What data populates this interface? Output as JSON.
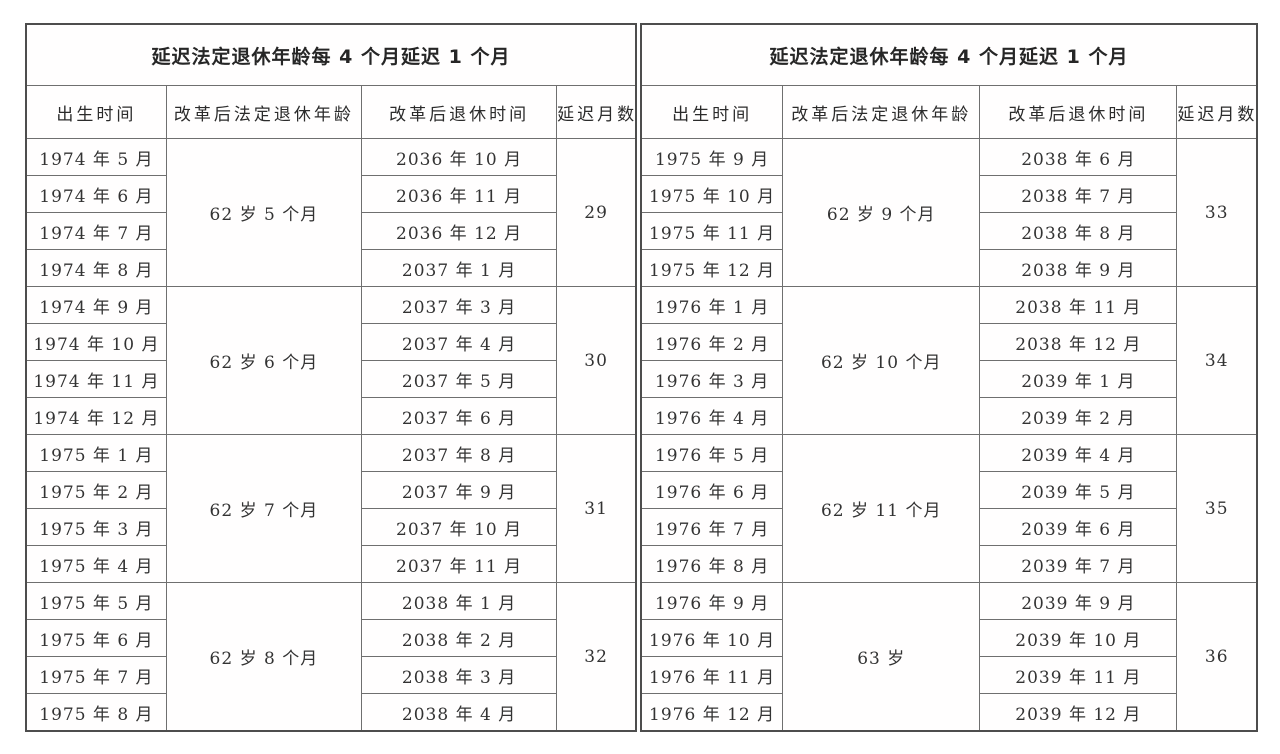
{
  "colors": {
    "background": "#ffffff",
    "outer_border": "#4d4d4d",
    "inner_border": "#6f6f6f",
    "text": "#2f2f2f"
  },
  "tables": [
    {
      "title": "延迟法定退休年龄每 4 个月延迟 1 个月",
      "headers": [
        "出生时间",
        "改革后法定退休年龄",
        "改革后退休时间",
        "延迟月数"
      ],
      "groups": [
        {
          "age": "62 岁 5 个月",
          "delay": "29",
          "rows": [
            {
              "birth": "1974 年 5 月",
              "retire": "2036 年 10 月"
            },
            {
              "birth": "1974 年 6 月",
              "retire": "2036 年 11 月"
            },
            {
              "birth": "1974 年 7 月",
              "retire": "2036 年 12 月"
            },
            {
              "birth": "1974 年 8 月",
              "retire": "2037 年 1 月"
            }
          ]
        },
        {
          "age": "62 岁 6 个月",
          "delay": "30",
          "rows": [
            {
              "birth": "1974 年 9 月",
              "retire": "2037 年 3 月"
            },
            {
              "birth": "1974 年 10 月",
              "retire": "2037 年 4 月"
            },
            {
              "birth": "1974 年 11 月",
              "retire": "2037 年 5 月"
            },
            {
              "birth": "1974 年 12 月",
              "retire": "2037 年 6 月"
            }
          ]
        },
        {
          "age": "62 岁 7 个月",
          "delay": "31",
          "rows": [
            {
              "birth": "1975 年 1 月",
              "retire": "2037 年 8 月"
            },
            {
              "birth": "1975 年 2 月",
              "retire": "2037 年 9 月"
            },
            {
              "birth": "1975 年 3 月",
              "retire": "2037 年 10 月"
            },
            {
              "birth": "1975 年 4 月",
              "retire": "2037 年 11 月"
            }
          ]
        },
        {
          "age": "62 岁 8 个月",
          "delay": "32",
          "rows": [
            {
              "birth": "1975 年 5 月",
              "retire": "2038 年 1 月"
            },
            {
              "birth": "1975 年 6 月",
              "retire": "2038 年 2 月"
            },
            {
              "birth": "1975 年 7 月",
              "retire": "2038 年 3 月"
            },
            {
              "birth": "1975 年 8 月",
              "retire": "2038 年 4 月"
            }
          ]
        }
      ]
    },
    {
      "title": "延迟法定退休年龄每 4 个月延迟 1 个月",
      "headers": [
        "出生时间",
        "改革后法定退休年龄",
        "改革后退休时间",
        "延迟月数"
      ],
      "groups": [
        {
          "age": "62 岁 9 个月",
          "delay": "33",
          "rows": [
            {
              "birth": "1975 年 9 月",
              "retire": "2038 年 6 月"
            },
            {
              "birth": "1975 年 10 月",
              "retire": "2038 年 7 月"
            },
            {
              "birth": "1975 年 11 月",
              "retire": "2038 年 8 月"
            },
            {
              "birth": "1975 年 12 月",
              "retire": "2038 年 9 月"
            }
          ]
        },
        {
          "age": "62 岁 10 个月",
          "delay": "34",
          "rows": [
            {
              "birth": "1976 年 1 月",
              "retire": "2038 年 11 月"
            },
            {
              "birth": "1976 年 2 月",
              "retire": "2038 年 12 月"
            },
            {
              "birth": "1976 年 3 月",
              "retire": "2039 年 1 月"
            },
            {
              "birth": "1976 年 4 月",
              "retire": "2039 年 2 月"
            }
          ]
        },
        {
          "age": "62 岁 11 个月",
          "delay": "35",
          "rows": [
            {
              "birth": "1976 年 5 月",
              "retire": "2039 年 4 月"
            },
            {
              "birth": "1976 年 6 月",
              "retire": "2039 年 5 月"
            },
            {
              "birth": "1976 年 7 月",
              "retire": "2039 年 6 月"
            },
            {
              "birth": "1976 年 8 月",
              "retire": "2039 年 7 月"
            }
          ]
        },
        {
          "age": "63 岁",
          "delay": "36",
          "rows": [
            {
              "birth": "1976 年 9 月",
              "retire": "2039 年 9 月"
            },
            {
              "birth": "1976 年 10 月",
              "retire": "2039 年 10 月"
            },
            {
              "birth": "1976 年 11 月",
              "retire": "2039 年 11 月"
            },
            {
              "birth": "1976 年 12 月",
              "retire": "2039 年 12 月"
            }
          ]
        }
      ]
    }
  ]
}
